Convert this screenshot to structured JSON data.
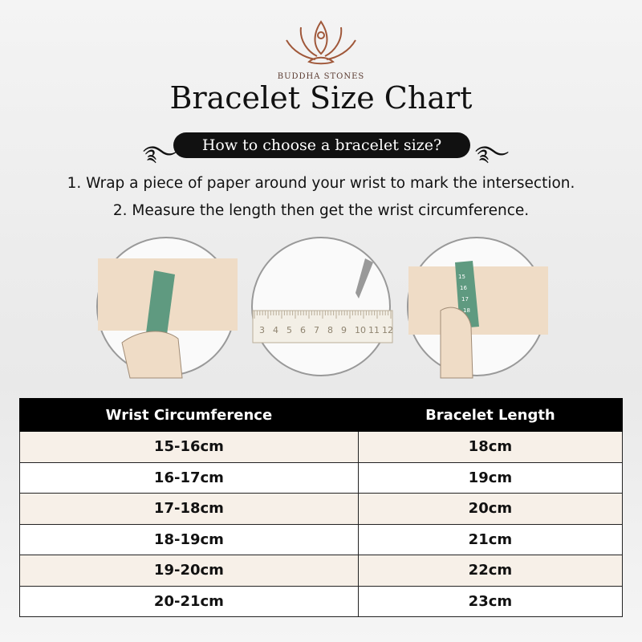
{
  "brand": {
    "name": "BUDDHA STONES",
    "colors": {
      "logo": "#a0583a"
    }
  },
  "title": "Bracelet Size Chart",
  "subtitle": "How to choose a bracelet size?",
  "steps": [
    "1. Wrap a piece of paper around your wrist to mark the intersection.",
    "2. Measure the length then get the wrist circumference."
  ],
  "ruler": {
    "ticks": [
      "3",
      "4",
      "5",
      "6",
      "7",
      "8",
      "9",
      "10",
      "11",
      "12"
    ]
  },
  "tape": {
    "ticks": [
      "15",
      "16",
      "17",
      "18"
    ]
  },
  "table": {
    "headers": [
      "Wrist Circumference",
      "Bracelet Length"
    ],
    "rows": [
      [
        "15-16cm",
        "18cm"
      ],
      [
        "16-17cm",
        "19cm"
      ],
      [
        "17-18cm",
        "20cm"
      ],
      [
        "18-19cm",
        "21cm"
      ],
      [
        "19-20cm",
        "22cm"
      ],
      [
        "20-21cm",
        "23cm"
      ]
    ]
  },
  "colors": {
    "tape": "#5f9a80",
    "skin": "#efdcc6",
    "header": "#000000",
    "row_alt": "#f7f0e8"
  }
}
